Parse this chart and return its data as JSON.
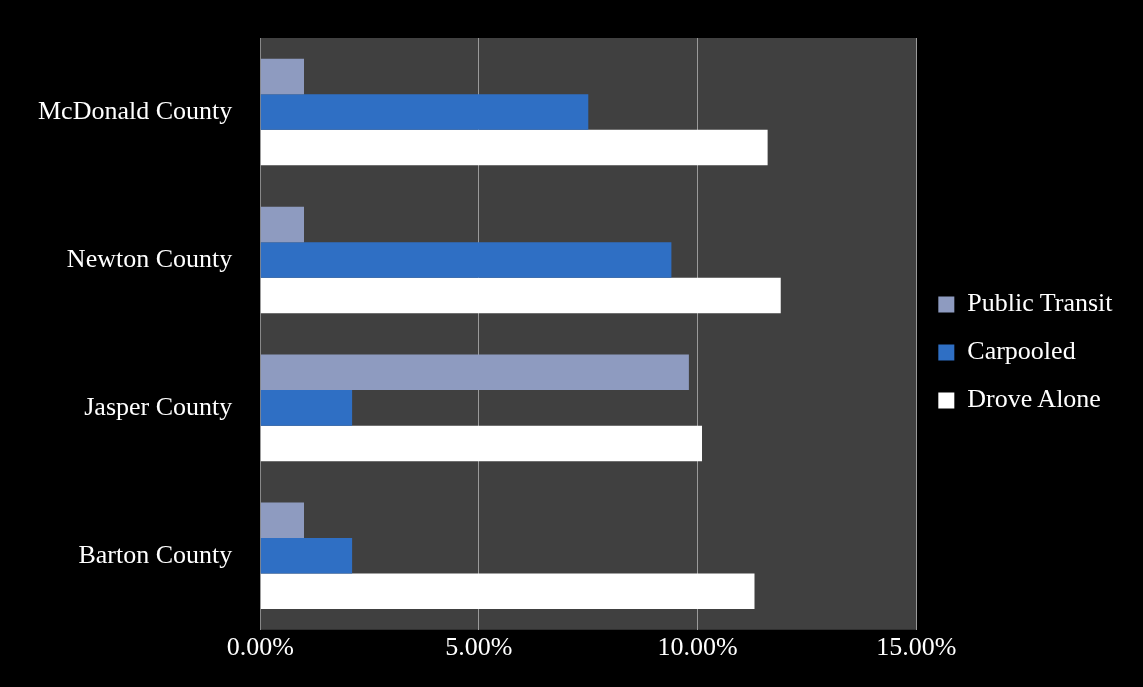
{
  "chart_data": {
    "type": "bar",
    "orientation": "horizontal",
    "categories": [
      "McDonald County",
      "Newton County",
      "Jasper County",
      "Barton County"
    ],
    "series": [
      {
        "name": "Public Transit",
        "color": "#8e9bc0",
        "values": [
          1.0,
          1.0,
          9.8,
          1.0
        ]
      },
      {
        "name": "Carpooled",
        "color": "#2f6fc4",
        "values": [
          7.5,
          9.4,
          2.1,
          2.1
        ]
      },
      {
        "name": "Drove Alone",
        "color": "#ffffff",
        "values": [
          11.6,
          11.9,
          10.1,
          11.3
        ]
      }
    ],
    "xlim": [
      0,
      15
    ],
    "xticks": [
      {
        "value": 0,
        "label": "0.00%"
      },
      {
        "value": 5,
        "label": "5.00%"
      },
      {
        "value": 10,
        "label": "10.00%"
      },
      {
        "value": 15,
        "label": "15.00%"
      }
    ],
    "grid": "x",
    "legend": "right"
  }
}
